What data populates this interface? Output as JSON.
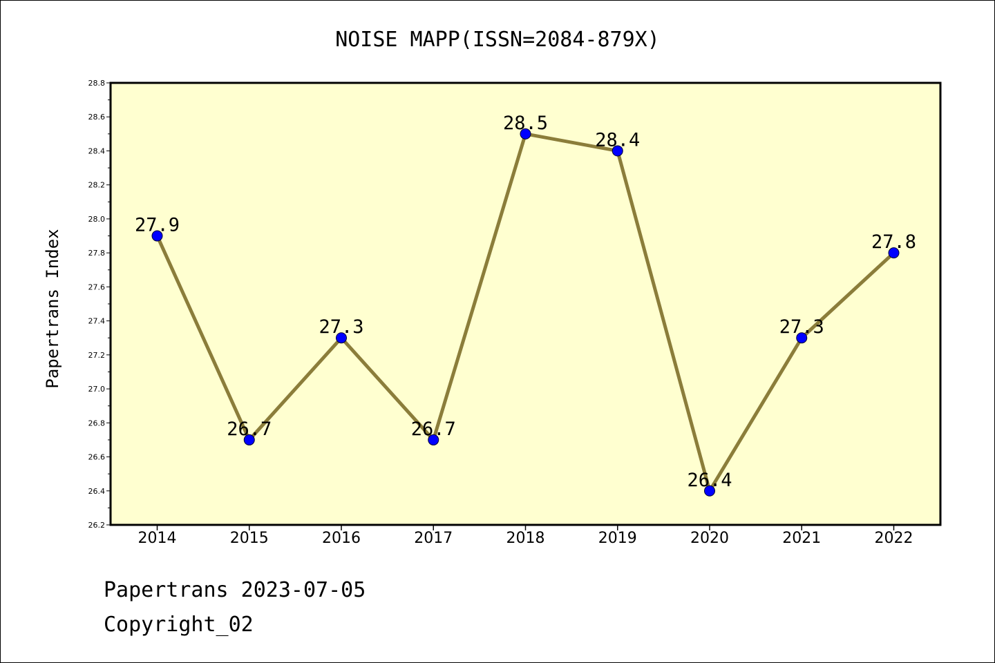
{
  "chart_data": {
    "type": "line",
    "title": "NOISE MAPP(ISSN=2084-879X)",
    "xlabel": "",
    "ylabel": "Papertrans Index",
    "categories": [
      "2014",
      "2015",
      "2016",
      "2017",
      "2018",
      "2019",
      "2020",
      "2021",
      "2022"
    ],
    "values": [
      27.9,
      26.7,
      27.3,
      26.7,
      28.5,
      28.4,
      26.4,
      27.3,
      27.8
    ],
    "data_labels": [
      "27.9",
      "26.7",
      "27.3",
      "26.7",
      "28.5",
      "28.4",
      "26.4",
      "27.3",
      "27.8"
    ],
    "ylim": [
      26.2,
      28.8
    ],
    "yticks": [
      "26.2",
      "26.4",
      "26.6",
      "26.8",
      "27.0",
      "27.2",
      "27.4",
      "27.6",
      "27.8",
      "28.0",
      "28.2",
      "28.4",
      "28.6",
      "28.8"
    ],
    "grid": false,
    "colors": {
      "plot_background": "#ffffd0",
      "line": "#8b7d3a",
      "marker": "#0000ff"
    }
  },
  "footer": {
    "line1": "Papertrans 2023-07-05",
    "line2": "Copyright_02"
  }
}
